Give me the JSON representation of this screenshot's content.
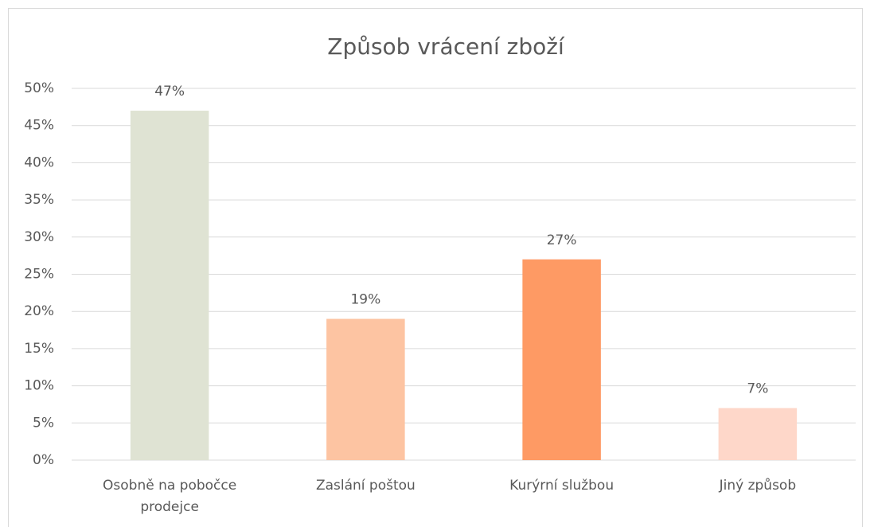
{
  "chart_data": {
    "type": "bar",
    "title": "Způsob vrácení zboží",
    "categories": [
      "Osobně na pobočce prodejce",
      "Zaslání poštou",
      "Kurýrní službou",
      "Jiný způsob"
    ],
    "values": [
      47,
      19,
      27,
      7
    ],
    "value_labels": [
      "47%",
      "19%",
      "27%",
      "7%"
    ],
    "colors": [
      "#dfe3d3",
      "#fdc4a2",
      "#fe9a64",
      "#fed7c9"
    ],
    "ylim": [
      0,
      50
    ],
    "yticks": [
      {
        "value": 0,
        "label": "0%"
      },
      {
        "value": 5,
        "label": "5%"
      },
      {
        "value": 10,
        "label": "10%"
      },
      {
        "value": 15,
        "label": "15%"
      },
      {
        "value": 20,
        "label": "20%"
      },
      {
        "value": 25,
        "label": "25%"
      },
      {
        "value": 30,
        "label": "30%"
      },
      {
        "value": 35,
        "label": "35%"
      },
      {
        "value": 40,
        "label": "40%"
      },
      {
        "value": 45,
        "label": "45%"
      },
      {
        "value": 50,
        "label": "50%"
      }
    ],
    "grid": true
  }
}
